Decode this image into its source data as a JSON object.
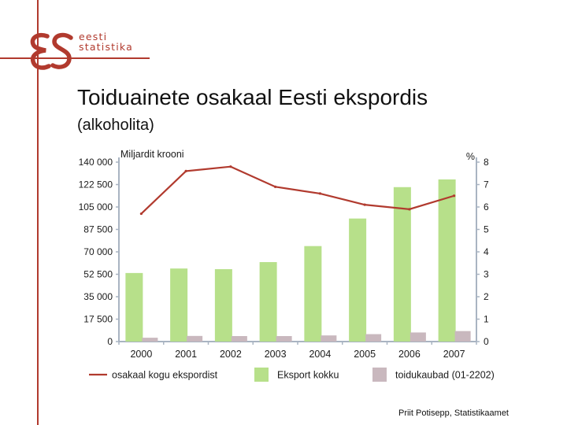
{
  "logo": {
    "line1": "eesti",
    "line2": "statistika"
  },
  "slide": {
    "title": "Toiduainete osakaal Eesti ekspordis",
    "subtitle": "(alkoholita)",
    "credit": "Priit Potisepp, Statistikaamet"
  },
  "colors": {
    "accent": "#b13a2e",
    "bar_total": "#b7e08a",
    "bar_food": "#c9b8be",
    "line_share": "#b13a2e",
    "axis": "#a9b4c2"
  },
  "chart_data": {
    "type": "bar",
    "categories": [
      "2000",
      "2001",
      "2002",
      "2003",
      "2004",
      "2005",
      "2006",
      "2007"
    ],
    "ylabel": "Miljardit krooni",
    "ylabel_right": "%",
    "ylim": [
      0,
      140000
    ],
    "ylim_right": [
      0,
      8
    ],
    "yticks": [
      "0",
      "17 500",
      "35 000",
      "52 500",
      "70 000",
      "87 500",
      "105 000",
      "122 500",
      "140 000"
    ],
    "yticks_right": [
      "0",
      "1",
      "2",
      "3",
      "4",
      "5",
      "6",
      "7",
      "8"
    ],
    "grid": false,
    "legend_position": "bottom",
    "series": [
      {
        "name": "Eksport kokku",
        "type": "bar",
        "axis": "left",
        "values": [
          53500,
          57000,
          56500,
          62000,
          74500,
          96000,
          120500,
          126500
        ]
      },
      {
        "name": "toidukaubad (01-2202)",
        "type": "bar",
        "axis": "left",
        "values": [
          3000,
          4400,
          4300,
          4300,
          4800,
          5800,
          7100,
          8200
        ]
      },
      {
        "name": "osakaal kogu ekspordist",
        "type": "line",
        "axis": "right",
        "values": [
          5.7,
          7.6,
          7.8,
          6.9,
          6.6,
          6.1,
          5.9,
          6.5
        ]
      }
    ]
  }
}
